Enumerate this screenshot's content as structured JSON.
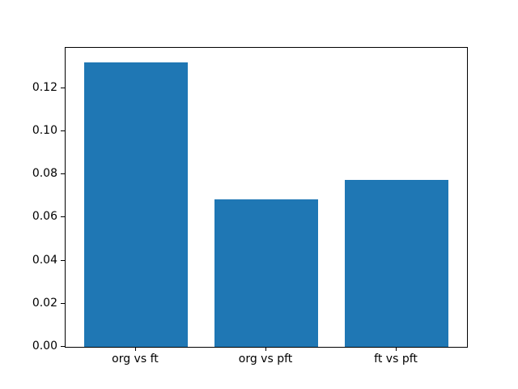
{
  "chart_data": {
    "type": "bar",
    "title": "",
    "xlabel": "",
    "ylabel": "",
    "categories": [
      "org vs ft",
      "org vs pft",
      "ft vs pft"
    ],
    "values": [
      0.132,
      0.0685,
      0.0772
    ],
    "bar_color": "#1f77b4",
    "bar_width_fraction": 0.8,
    "xlim": [
      -0.54,
      2.54
    ],
    "ylim": [
      0,
      0.1386
    ],
    "yticks": [
      0.0,
      0.02,
      0.04,
      0.06,
      0.08,
      0.1,
      0.12
    ],
    "ytick_labels": [
      "0.00",
      "0.02",
      "0.04",
      "0.06",
      "0.08",
      "0.10",
      "0.12"
    ],
    "grid": false,
    "legend": null,
    "axis_color": "#000000",
    "background_color": "#ffffff"
  }
}
